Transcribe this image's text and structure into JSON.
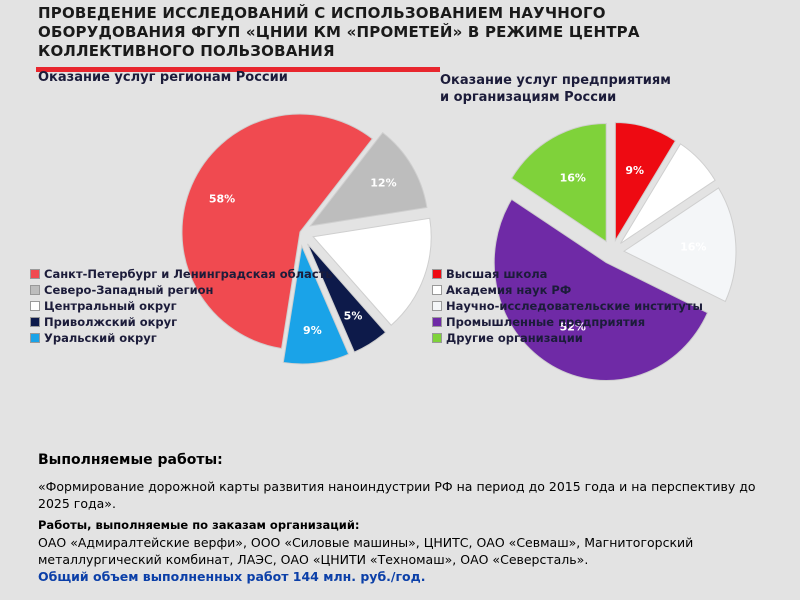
{
  "header": {
    "title": "ПРОВЕДЕНИЕ ИССЛЕДОВАНИЙ С ИСПОЛЬЗОВАНИЕМ НАУЧНОГО ОБОРУДОВАНИЯ  ФГУП «ЦНИИ КМ «ПРОМЕТЕЙ» В РЕЖИМЕ ЦЕНТРА КОЛЛЕКТИВНОГО ПОЛЬЗОВАНИЯ",
    "accent_color": "#e8262e"
  },
  "chart_data": [
    {
      "type": "pie",
      "title": "Оказание услуг регионам России",
      "categories": [
        "Санкт-Петербург и Ленинградская область",
        "Северо-Западный регион",
        "Центральный округ",
        "Приволжский округ",
        "Уральский округ"
      ],
      "values": [
        58,
        12,
        16,
        5,
        9
      ],
      "data_labels": [
        "58%",
        "12%",
        "",
        "5%",
        "9%"
      ],
      "colors": [
        "#f04a50",
        "#bdbdbd",
        "#ffffff",
        "#0d1a4a",
        "#1aa3e8"
      ],
      "exploded": true,
      "legend_position": "bottom-left"
    },
    {
      "type": "pie",
      "title": "Оказание услуг предприятиям\nи организациям России",
      "categories": [
        "Высшая школа",
        "Академия наук РФ",
        "Научно-исследовательские институты",
        "Промышленные предприятия",
        "Другие организации"
      ],
      "values": [
        9,
        7,
        16,
        52,
        16
      ],
      "data_labels": [
        "9%",
        "",
        "16%",
        "52%",
        "16%"
      ],
      "colors": [
        "#ee0a12",
        "#ffffff",
        "#f4f6f8",
        "#6f2aa6",
        "#7fd23a"
      ],
      "exploded": true,
      "legend_position": "left"
    }
  ],
  "bottom": {
    "heading": "Выполняемые работы:",
    "paragraph": "«Формирование дорожной карты развития наноиндустрии РФ на период до 2015 года и на перспективу до 2025 года».",
    "orders_heading": "Работы, выполняемые по заказам организаций:",
    "orders_text": " ОАО «Адмиралтейские верфи», ООО «Силовые машины», ЦНИТС, ОАО «Севмаш», Магнитогорский металлургический комбинат, ЛАЭС, ОАО «ЦНИТИ «Техномаш», ОАО «Северсталь».",
    "total": "Общий объем выполненных работ 144 млн. руб./год.",
    "total_color": "#0b3fa8"
  }
}
